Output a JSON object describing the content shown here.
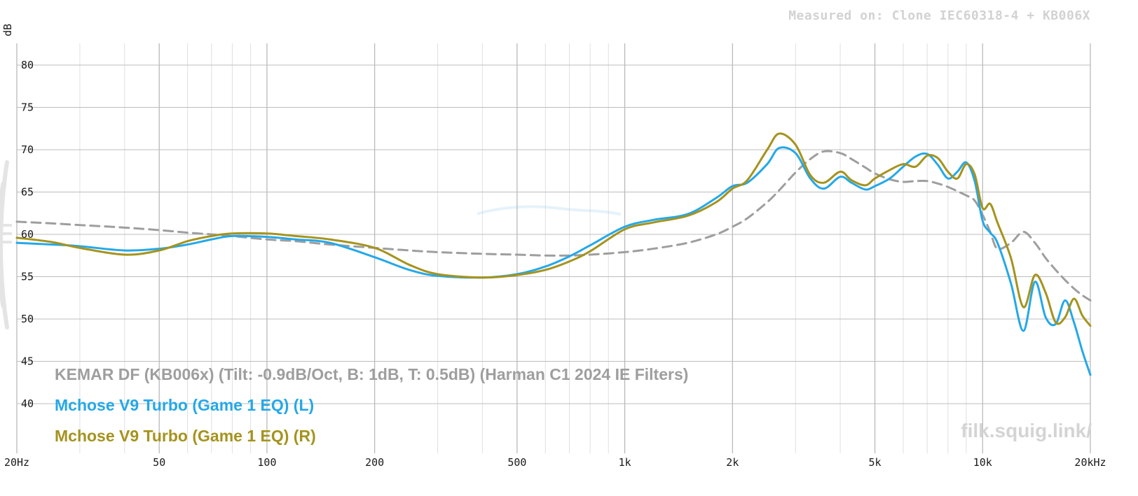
{
  "header": {
    "measured_on": "Measured on: Clone IEC60318-4 + KB006X"
  },
  "watermark": "filk.squig.link/",
  "chart_data": {
    "type": "line",
    "title": "Measured on: Clone IEC60318-4 + KB006X",
    "x_axis": {
      "scale": "log",
      "min": 20,
      "max": 20000,
      "unit": "Hz"
    },
    "y_axis": {
      "label": "dB",
      "min": 40,
      "max": 80,
      "grid_step": 5
    },
    "y_unit": "dB",
    "grid": true,
    "legend_position": "bottom-left",
    "x_tick_freqs": [
      20,
      50,
      100,
      200,
      500,
      1000,
      2000,
      5000,
      10000,
      20000
    ],
    "x_tick_labels": [
      "20Hz",
      "50",
      "100",
      "200",
      "500",
      "1k",
      "2k",
      "5k",
      "10k",
      "20kHz"
    ],
    "y_ticks": [
      40,
      45,
      50,
      55,
      60,
      65,
      70,
      75,
      80
    ],
    "x": [
      20,
      25,
      30,
      40,
      50,
      60,
      70,
      80,
      100,
      120,
      150,
      200,
      250,
      300,
      400,
      500,
      600,
      700,
      800,
      1000,
      1200,
      1500,
      1800,
      2000,
      2200,
      2500,
      2700,
      3000,
      3300,
      3600,
      4000,
      4300,
      4700,
      5000,
      5500,
      6000,
      6500,
      7000,
      7500,
      8000,
      8500,
      9000,
      9500,
      10000,
      10500,
      11000,
      12000,
      13000,
      14000,
      15000,
      16000,
      17000,
      18000,
      19000,
      20000
    ],
    "series": [
      {
        "name": "KEMAR DF (KB006x) (Tilt: -0.9dB/Oct, B: 1dB, T: 0.5dB) (Harman C1 2024 IE Filters)",
        "color": "#9e9e9e",
        "style": "dashed",
        "values": [
          61.5,
          61.3,
          61.1,
          60.8,
          60.5,
          60.2,
          60.0,
          59.8,
          59.4,
          59.2,
          58.8,
          58.4,
          58.1,
          57.9,
          57.7,
          57.6,
          57.5,
          57.5,
          57.6,
          57.9,
          58.3,
          59.0,
          60.0,
          60.9,
          61.9,
          63.8,
          65.2,
          67.3,
          68.9,
          69.8,
          69.6,
          68.9,
          67.9,
          67.2,
          66.5,
          66.2,
          66.3,
          66.3,
          66.0,
          65.6,
          65.1,
          64.6,
          64.0,
          62.3,
          60.3,
          58.3,
          59.0,
          60.3,
          59.0,
          57.2,
          55.8,
          54.6,
          53.6,
          52.8,
          52.2
        ]
      },
      {
        "name": "Mchose V9 Turbo (Game 1 EQ) (L)",
        "color": "#25a8e8",
        "style": "solid",
        "values": [
          59.0,
          58.8,
          58.6,
          58.1,
          58.3,
          58.8,
          59.4,
          59.8,
          59.7,
          59.4,
          59.0,
          57.3,
          55.8,
          55.1,
          54.9,
          55.3,
          56.2,
          57.4,
          58.7,
          60.9,
          61.7,
          62.4,
          64.3,
          65.7,
          66.1,
          68.3,
          70.2,
          69.6,
          66.6,
          65.4,
          66.8,
          66.1,
          65.3,
          65.7,
          66.6,
          68.0,
          69.2,
          69.5,
          68.2,
          66.6,
          67.4,
          68.5,
          66.3,
          61.6,
          60.2,
          59.0,
          54.2,
          48.6,
          54.4,
          50.2,
          49.4,
          52.2,
          49.6,
          46.2,
          43.4
        ]
      },
      {
        "name": "Mchose V9 Turbo (Game 1 EQ) (R)",
        "color": "#a5931d",
        "style": "solid",
        "values": [
          59.6,
          59.1,
          58.4,
          57.6,
          58.1,
          59.2,
          59.8,
          60.1,
          60.1,
          59.8,
          59.4,
          58.4,
          56.4,
          55.3,
          54.9,
          55.2,
          55.8,
          56.8,
          58.0,
          60.6,
          61.4,
          62.2,
          63.8,
          65.4,
          66.4,
          70.0,
          71.9,
          70.6,
          67.0,
          66.1,
          67.4,
          66.4,
          65.8,
          66.6,
          67.6,
          68.3,
          68.0,
          69.3,
          69.0,
          67.4,
          66.6,
          68.3,
          67.1,
          63.1,
          63.6,
          61.4,
          57.2,
          51.4,
          55.2,
          53.1,
          49.6,
          50.2,
          52.4,
          50.4,
          49.2
        ]
      }
    ],
    "decorations": {
      "ghost_curve_color": "#8fc4ea",
      "edge_logo_color": "#cfcfcf"
    }
  }
}
